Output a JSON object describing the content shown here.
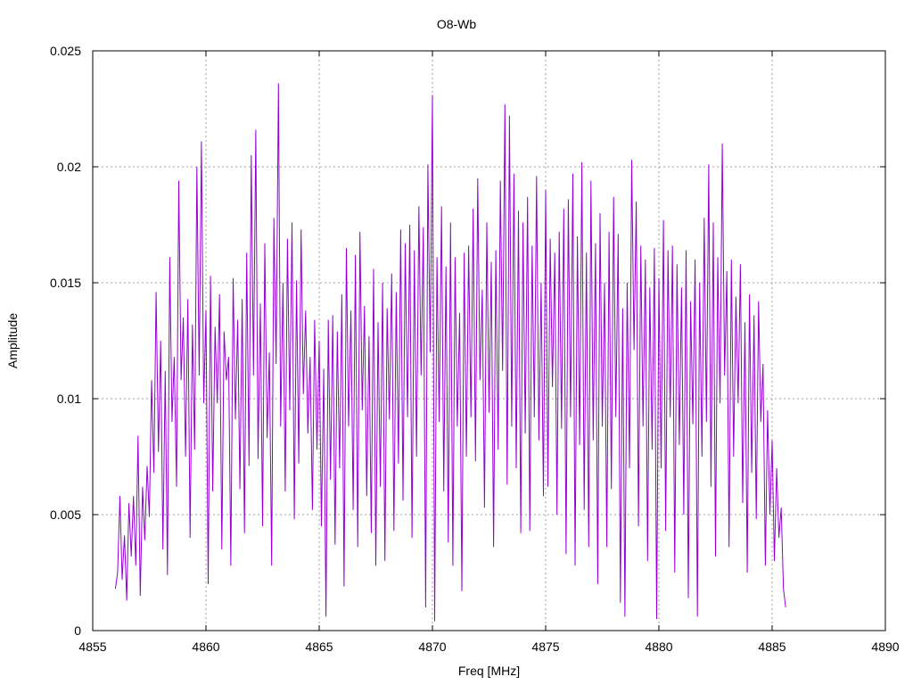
{
  "chart_data": {
    "type": "line",
    "title": "O8-Wb",
    "xlabel": "Freq [MHz]",
    "ylabel": "Amplitude",
    "xlim": [
      4855,
      4890
    ],
    "ylim": [
      0,
      0.025
    ],
    "x_ticks": [
      4855,
      4860,
      4865,
      4870,
      4875,
      4880,
      4885,
      4890
    ],
    "x_tick_labels": [
      "4855",
      "4860",
      "4865",
      "4870",
      "4875",
      "4880",
      "4885",
      "4890"
    ],
    "y_ticks": [
      0,
      0.005,
      0.01,
      0.015,
      0.02,
      0.025
    ],
    "y_tick_labels": [
      "0",
      "0.005",
      "0.01",
      "0.015",
      "0.02",
      "0.025"
    ],
    "grid": true,
    "legend": false,
    "series": [
      {
        "color": "#9400d3",
        "x_start": 4856.0,
        "x_step": 0.1,
        "values": [
          0.0018,
          0.0025,
          0.0058,
          0.0022,
          0.0041,
          0.0013,
          0.0055,
          0.0032,
          0.0058,
          0.0028,
          0.0084,
          0.0015,
          0.0062,
          0.0039,
          0.0071,
          0.0049,
          0.0108,
          0.0068,
          0.0146,
          0.0077,
          0.0125,
          0.0035,
          0.0112,
          0.0024,
          0.0161,
          0.009,
          0.0118,
          0.0062,
          0.0194,
          0.0108,
          0.0135,
          0.0075,
          0.0143,
          0.004,
          0.0132,
          0.0078,
          0.02,
          0.011,
          0.0211,
          0.0098,
          0.0138,
          0.002,
          0.0153,
          0.006,
          0.0131,
          0.0098,
          0.0145,
          0.0035,
          0.0129,
          0.0108,
          0.0118,
          0.0028,
          0.0152,
          0.0091,
          0.0134,
          0.0061,
          0.0143,
          0.0042,
          0.0163,
          0.0071,
          0.0205,
          0.011,
          0.0216,
          0.0074,
          0.0141,
          0.0045,
          0.0167,
          0.0083,
          0.012,
          0.0028,
          0.0178,
          0.0115,
          0.0236,
          0.0088,
          0.015,
          0.006,
          0.0169,
          0.0095,
          0.0176,
          0.0048,
          0.0151,
          0.0072,
          0.0173,
          0.0102,
          0.0138,
          0.0085,
          0.0118,
          0.0052,
          0.0134,
          0.0078,
          0.0125,
          0.0045,
          0.0113,
          0.0006,
          0.0134,
          0.0065,
          0.0136,
          0.0037,
          0.0129,
          0.007,
          0.0145,
          0.0019,
          0.0165,
          0.0088,
          0.0138,
          0.0052,
          0.0162,
          0.0036,
          0.0172,
          0.0095,
          0.014,
          0.0058,
          0.0127,
          0.0042,
          0.0156,
          0.0028,
          0.0133,
          0.0062,
          0.015,
          0.003,
          0.0139,
          0.0091,
          0.0154,
          0.0043,
          0.0146,
          0.0072,
          0.0173,
          0.0056,
          0.0167,
          0.0092,
          0.0175,
          0.004,
          0.0164,
          0.0075,
          0.0183,
          0.011,
          0.0174,
          0.001,
          0.0201,
          0.012,
          0.0231,
          0.0004,
          0.0161,
          0.009,
          0.0183,
          0.006,
          0.0157,
          0.0038,
          0.0176,
          0.0028,
          0.0161,
          0.0088,
          0.0137,
          0.0017,
          0.0163,
          0.0075,
          0.0166,
          0.0092,
          0.0182,
          0.0073,
          0.0195,
          0.0108,
          0.0147,
          0.0053,
          0.0176,
          0.0094,
          0.0159,
          0.0036,
          0.0164,
          0.0078,
          0.0194,
          0.0112,
          0.0227,
          0.0063,
          0.0222,
          0.0088,
          0.0197,
          0.007,
          0.0181,
          0.0042,
          0.0176,
          0.0085,
          0.0187,
          0.0043,
          0.0166,
          0.0092,
          0.0196,
          0.0082,
          0.015,
          0.0058,
          0.019,
          0.0062,
          0.0169,
          0.0105,
          0.0163,
          0.005,
          0.0172,
          0.0087,
          0.0182,
          0.0033,
          0.0186,
          0.0092,
          0.0197,
          0.0028,
          0.017,
          0.008,
          0.0202,
          0.0052,
          0.0163,
          0.0036,
          0.0194,
          0.0082,
          0.0167,
          0.002,
          0.018,
          0.0088,
          0.015,
          0.0036,
          0.0172,
          0.0061,
          0.0187,
          0.0092,
          0.0171,
          0.0012,
          0.0139,
          0.0006,
          0.015,
          0.007,
          0.0203,
          0.0121,
          0.0185,
          0.0045,
          0.0166,
          0.0088,
          0.016,
          0.003,
          0.0148,
          0.0078,
          0.0165,
          0.0005,
          0.0152,
          0.007,
          0.0177,
          0.0043,
          0.0164,
          0.0092,
          0.0166,
          0.0025,
          0.0158,
          0.008,
          0.0148,
          0.005,
          0.0164,
          0.0014,
          0.0142,
          0.0089,
          0.016,
          0.0006,
          0.015,
          0.0075,
          0.0178,
          0.009,
          0.0201,
          0.0062,
          0.0176,
          0.0032,
          0.0161,
          0.0098,
          0.021,
          0.011,
          0.0155,
          0.0036,
          0.016,
          0.0075,
          0.0144,
          0.0098,
          0.0158,
          0.0055,
          0.0133,
          0.0025,
          0.0145,
          0.0068,
          0.0136,
          0.0048,
          0.0142,
          0.009,
          0.0115,
          0.0028,
          0.0095,
          0.005,
          0.0082,
          0.003,
          0.007,
          0.004,
          0.0053,
          0.0018,
          0.001
        ]
      }
    ]
  }
}
